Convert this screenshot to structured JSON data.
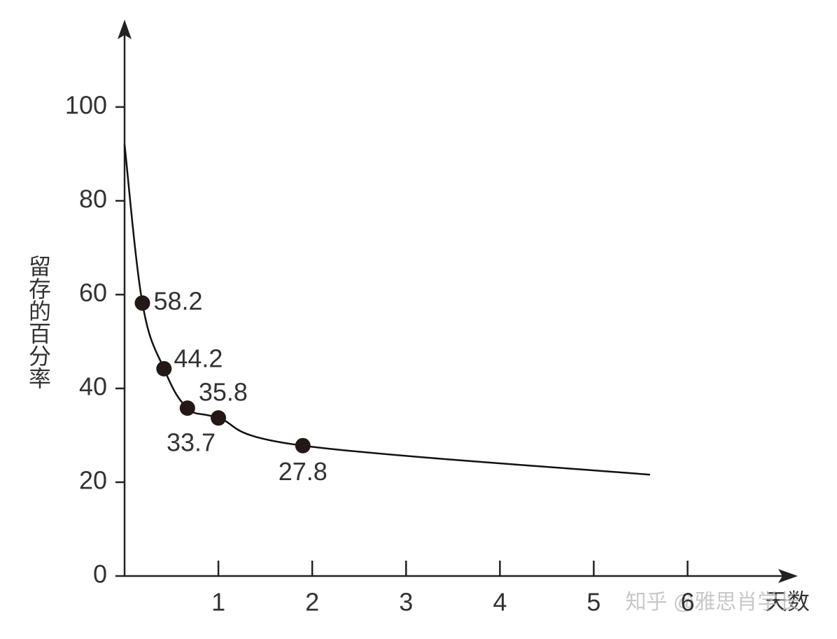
{
  "chart_data": {
    "type": "line",
    "y_label": "留存的百分率",
    "x_label": "天数",
    "watermark": "知乎 @雅思肖学长",
    "xlim": [
      0,
      7.1
    ],
    "ylim": [
      0,
      117
    ],
    "xticks": [
      1,
      2,
      3,
      4,
      5,
      6
    ],
    "yticks": [
      0,
      20,
      40,
      60,
      80,
      100
    ],
    "color": "#111111",
    "series": [
      {
        "x": [
          0,
          0.19,
          0.42,
          0.67,
          1,
          1.9,
          5.6
        ],
        "values": [
          92,
          58.2,
          44.2,
          35.8,
          33.7,
          27.8,
          21.6
        ],
        "markers": false,
        "labels": false
      },
      {
        "x": [
          0.19,
          0.42,
          0.67,
          1,
          1.9
        ],
        "values": [
          58.2,
          44.2,
          35.8,
          33.7,
          27.8
        ],
        "markers": true,
        "labels": true
      }
    ]
  }
}
